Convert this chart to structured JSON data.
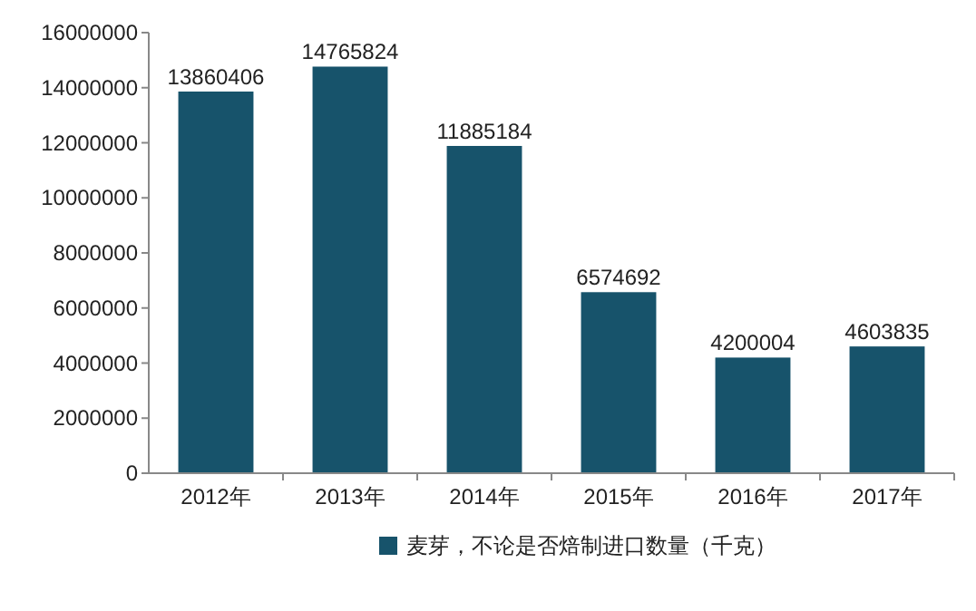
{
  "chart_data": {
    "type": "bar",
    "categories": [
      "2012年",
      "2013年",
      "2014年",
      "2015年",
      "2016年",
      "2017年"
    ],
    "series": [
      {
        "name": "麦芽，不论是否焙制进口数量（千克）",
        "color": "#17536b",
        "values": [
          13860406,
          14765824,
          11885184,
          6574692,
          4200004,
          4603835
        ]
      }
    ],
    "ylim": [
      0,
      16000000
    ],
    "yticks": [
      0,
      2000000,
      4000000,
      6000000,
      8000000,
      10000000,
      12000000,
      14000000,
      16000000
    ],
    "data_labels": true,
    "legend": "bottom",
    "grid": false
  }
}
